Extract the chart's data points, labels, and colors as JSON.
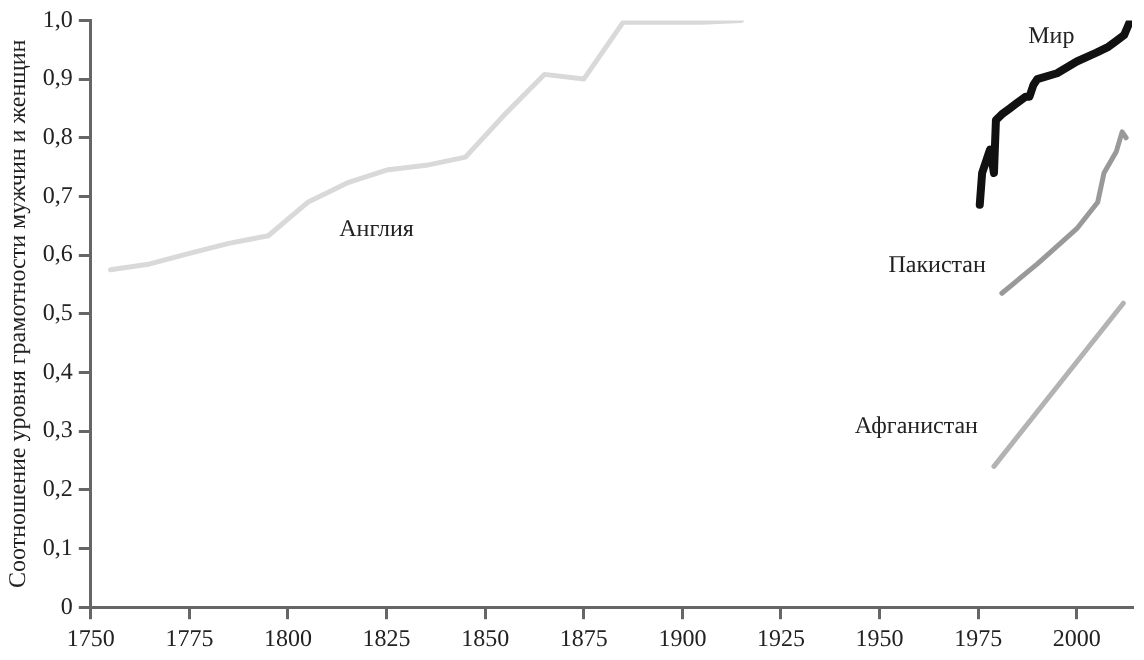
{
  "chart_data": {
    "type": "line",
    "ylabel": "Соотношение уровня грамотности мужчин и женщин",
    "xlim": [
      1750,
      2014
    ],
    "xticks": [
      1750,
      1775,
      1800,
      1825,
      1850,
      1875,
      1900,
      1925,
      1950,
      1975,
      2000
    ],
    "ylim": [
      0,
      1.0
    ],
    "yticks": [
      0,
      {
        "value": 0.1,
        "label": "0,1"
      },
      {
        "value": 0.2,
        "label": "0,2"
      },
      {
        "value": 0.3,
        "label": "0,3"
      },
      {
        "value": 0.4,
        "label": "0,4"
      },
      {
        "value": 0.5,
        "label": "0,5"
      },
      {
        "value": 0.6,
        "label": "0,6"
      },
      {
        "value": 0.7,
        "label": "0,7"
      },
      {
        "value": 0.8,
        "label": "0,8"
      },
      {
        "value": 0.9,
        "label": "0,9"
      },
      {
        "value": 1.0,
        "label": "1,0"
      }
    ],
    "marker": "none",
    "line_style": "solid",
    "legend": false,
    "series": [
      {
        "name": "Англия",
        "color": "#d9d9d9",
        "x": [
          1755,
          1765,
          1775,
          1785,
          1795,
          1805,
          1815,
          1825,
          1835,
          1845,
          1855,
          1865,
          1875,
          1885,
          1895,
          1905,
          1915
        ],
        "values": [
          0.575,
          0.585,
          0.603,
          0.62,
          0.633,
          0.69,
          0.723,
          0.745,
          0.753,
          0.767,
          0.84,
          0.908,
          0.9,
          0.997,
          0.997,
          0.997,
          1.0
        ]
      },
      {
        "name": "Мир",
        "color": "#111111",
        "x": [
          1975.4,
          1976,
          1977,
          1978,
          1979,
          1979.5,
          1981,
          1983,
          1985,
          1987,
          1988,
          1989,
          1990,
          1995,
          2000,
          2005,
          2008,
          2010,
          2012,
          2013.6
        ],
        "values": [
          0.686,
          0.74,
          0.76,
          0.78,
          0.74,
          0.83,
          0.84,
          0.85,
          0.86,
          0.87,
          0.87,
          0.89,
          0.9,
          0.91,
          0.93,
          0.945,
          0.955,
          0.965,
          0.975,
          1.0
        ]
      },
      {
        "name": "Пакистан",
        "color": "#999999",
        "x": [
          1981,
          1990,
          2000,
          2005.3,
          2006.9,
          2010,
          2011.5,
          2012.5
        ],
        "values": [
          0.535,
          0.585,
          0.645,
          0.69,
          0.74,
          0.776,
          0.81,
          0.8
        ]
      },
      {
        "name": "Афганистан",
        "color": "#b3b3b3",
        "x": [
          1979,
          2011.8
        ],
        "values": [
          0.24,
          0.518
        ]
      }
    ]
  }
}
